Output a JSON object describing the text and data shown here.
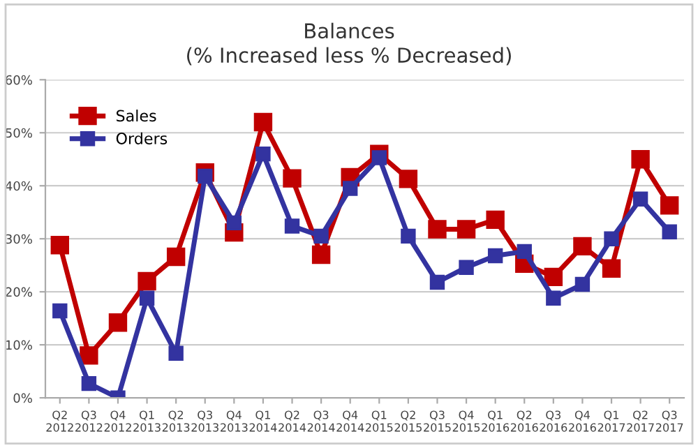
{
  "chart_data": {
    "type": "line",
    "title": "Balances\n(% Increased less % Decreased)",
    "categories": [
      "Q2\n2012",
      "Q3\n2012",
      "Q4\n2012",
      "Q1\n2013",
      "Q2\n2013",
      "Q3\n2013",
      "Q4\n2013",
      "Q1\n2014",
      "Q2\n2014",
      "Q3\n2014",
      "Q4\n2014",
      "Q1\n2015",
      "Q2\n2015",
      "Q3\n2015",
      "Q4\n2015",
      "Q1\n2016",
      "Q2\n2016",
      "Q3\n2016",
      "Q4\n2016",
      "Q1\n2017",
      "Q2\n2017",
      "Q3\n2017"
    ],
    "series": [
      {
        "name": "Sales",
        "color": "#c00000",
        "values": [
          28.8,
          8,
          14.2,
          22,
          26.6,
          42.5,
          31.2,
          52,
          41.4,
          27,
          41.6,
          46,
          41.3,
          31.8,
          31.8,
          33.6,
          25.3,
          22.8,
          28.6,
          24.4,
          45,
          36.3
        ]
      },
      {
        "name": "Orders",
        "color": "#3333a0",
        "values": [
          16.4,
          2.7,
          0,
          18.8,
          8.4,
          41.8,
          33,
          46,
          32.4,
          30.5,
          39.5,
          45.3,
          30.5,
          21.8,
          24.6,
          26.8,
          27.6,
          18.8,
          21.4,
          30,
          37.5,
          31.3
        ]
      }
    ],
    "ylim": [
      0,
      60
    ],
    "yticks": [
      {
        "value": 0,
        "label": "0%"
      },
      {
        "value": 10,
        "label": "10%"
      },
      {
        "value": 20,
        "label": "20%"
      },
      {
        "value": 30,
        "label": "30%"
      },
      {
        "value": 40,
        "label": "40%"
      },
      {
        "value": 50,
        "label": "50%"
      },
      {
        "value": 60,
        "label": "60%"
      }
    ],
    "grid": "y",
    "legend": "top left",
    "marker": "square",
    "line_style": "solid"
  }
}
